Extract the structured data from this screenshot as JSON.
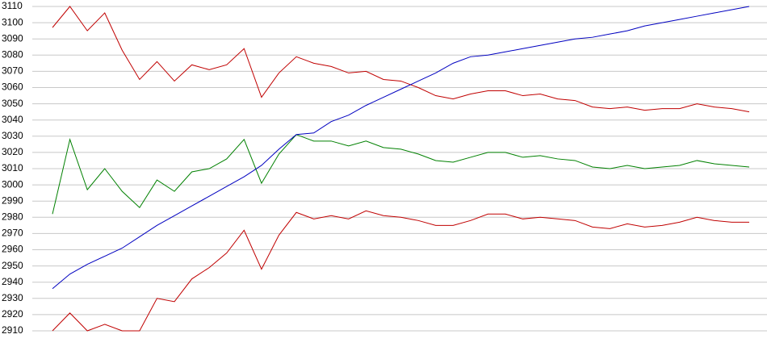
{
  "chart_data": {
    "type": "line",
    "categories": [
      null,
      null,
      null,
      null,
      null,
      null,
      null,
      null,
      null,
      null,
      null,
      null,
      null,
      null,
      null,
      null,
      null,
      null,
      null,
      null,
      null,
      null,
      null,
      null,
      null,
      null,
      null,
      null,
      null,
      null,
      null,
      null,
      null,
      null,
      null,
      null,
      null,
      null,
      null,
      null,
      null
    ],
    "series": [
      {
        "color": "#c00000",
        "values": [
          3097,
          3110,
          3095,
          3106,
          3083,
          3065,
          3076,
          3064,
          3074,
          3071,
          3074,
          3084,
          3054,
          3069,
          3079,
          3075,
          3073,
          3069,
          3070,
          3065,
          3064,
          3060,
          3055,
          3053,
          3056,
          3058,
          3058,
          3055,
          3056,
          3053,
          3052,
          3048,
          3047,
          3048,
          3046,
          3047,
          3047,
          3050,
          3048,
          3047,
          3045
        ]
      },
      {
        "color": "#008000",
        "values": [
          2982,
          3028,
          2997,
          3010,
          2996,
          2986,
          3003,
          2996,
          3008,
          3010,
          3016,
          3028,
          3001,
          3019,
          3031,
          3027,
          3027,
          3024,
          3027,
          3023,
          3022,
          3019,
          3015,
          3014,
          3017,
          3020,
          3020,
          3017,
          3018,
          3016,
          3015,
          3011,
          3010,
          3012,
          3010,
          3011,
          3012,
          3015,
          3013,
          3012,
          3011
        ]
      },
      {
        "color": "#c00000",
        "values": [
          2910,
          2921,
          2910,
          2914,
          2910,
          2910,
          2930,
          2928,
          2942,
          2949,
          2958,
          2972,
          2948,
          2969,
          2983,
          2979,
          2981,
          2979,
          2984,
          2981,
          2980,
          2978,
          2975,
          2975,
          2978,
          2982,
          2982,
          2979,
          2980,
          2979,
          2978,
          2974,
          2973,
          2976,
          2974,
          2975,
          2977,
          2980,
          2978,
          2977,
          2977
        ]
      },
      {
        "color": "#0000c0",
        "values": [
          2936,
          2945,
          2951,
          2956,
          2961,
          2968,
          2975,
          2981,
          2987,
          2993,
          2999,
          3005,
          3012,
          3022,
          3031,
          3032,
          3039,
          3043,
          3049,
          3054,
          3059,
          3064,
          3069,
          3075,
          3079,
          3080,
          3082,
          3084,
          3086,
          3088,
          3090,
          3091,
          3093,
          3095,
          3098,
          3100,
          3102,
          3104,
          3106,
          3108,
          3110
        ]
      }
    ],
    "ylim": [
      2910,
      3110
    ],
    "yticks": [
      2910,
      2920,
      2930,
      2940,
      2950,
      2960,
      2970,
      2980,
      2990,
      3000,
      3010,
      3020,
      3030,
      3040,
      3050,
      3060,
      3070,
      3080,
      3090,
      3100,
      3110
    ],
    "grid": true
  }
}
